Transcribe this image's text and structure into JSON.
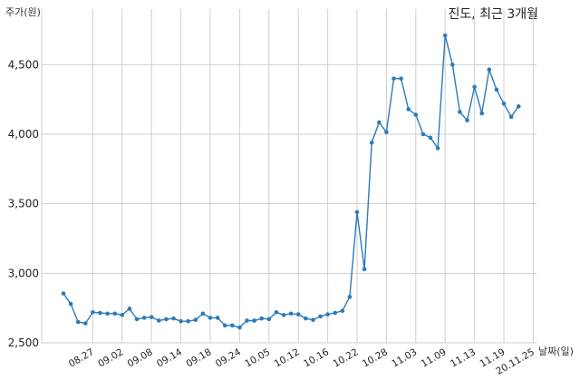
{
  "chart_data": {
    "type": "line",
    "title": "진도, 최근 3개월",
    "xlabel": "날짜(일)",
    "ylabel": "주가(원)",
    "ylim": [
      2500,
      4900
    ],
    "yticks": [
      2500,
      3000,
      3500,
      4000,
      4500
    ],
    "ytick_labels": [
      "2,500",
      "3,000",
      "3,500",
      "4,000",
      "4,500"
    ],
    "xtick_labels": [
      "08.27",
      "09.02",
      "09.08",
      "09.14",
      "09.18",
      "09.24",
      "10.05",
      "10.12",
      "10.16",
      "10.22",
      "10.28",
      "11.03",
      "11.09",
      "11.13",
      "11.19",
      "20.11.25"
    ],
    "xtick_indices": [
      4,
      8,
      12,
      16,
      20,
      24,
      28,
      32,
      36,
      40,
      44,
      48,
      52,
      56,
      60,
      64
    ],
    "grid": true,
    "color": "#2b7bba",
    "series": [
      {
        "values": [
          2855,
          2780,
          2650,
          2640,
          2720,
          2715,
          2710,
          2710,
          2700,
          2745,
          2670,
          2680,
          2685,
          2660,
          2670,
          2675,
          2655,
          2655,
          2665,
          2710,
          2680,
          2680,
          2625,
          2625,
          2610,
          2660,
          2660,
          2675,
          2670,
          2720,
          2700,
          2710,
          2705,
          2675,
          2665,
          2690,
          2705,
          2715,
          2730,
          2830,
          3440,
          3030,
          3940,
          4085,
          4015,
          4400,
          4400,
          4180,
          4140,
          4000,
          3975,
          3900,
          4710,
          4500,
          4160,
          4100,
          4340,
          4150,
          4465,
          4320,
          4220,
          4125,
          4200
        ]
      }
    ]
  }
}
